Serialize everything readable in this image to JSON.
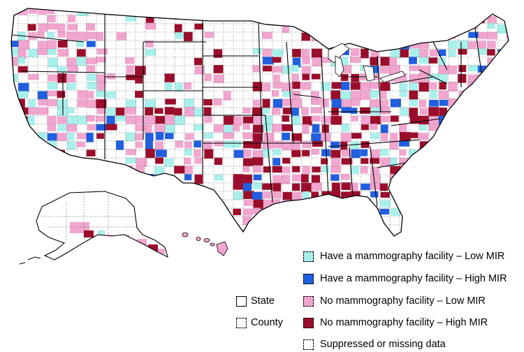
{
  "colors": {
    "have_low": "#a8f0ec",
    "have_high": "#1f5fe0",
    "no_low": "#f2a6cf",
    "no_high": "#9b0d2b",
    "state_border": "#000000",
    "county_border": "#555555",
    "background": "#ffffff"
  },
  "legend": {
    "categories": [
      {
        "key": "have_low",
        "label": "Have a mammography  facility – Low MIR",
        "swatch_style": "dashed"
      },
      {
        "key": "have_high",
        "label": "Have a mammography  facility – High MIR",
        "swatch_style": "dashed"
      },
      {
        "key": "no_low",
        "label": "No mammography facility – Low MIR",
        "swatch_style": "dashed"
      },
      {
        "key": "no_high",
        "label": "No mammography facility – High MIR",
        "swatch_style": "dashed"
      },
      {
        "key": "missing",
        "label": "Suppressed or missing data",
        "swatch_style": "dashed"
      }
    ],
    "boundaries": [
      {
        "key": "state",
        "label": "State",
        "swatch_style": "solid"
      },
      {
        "key": "county",
        "label": "County",
        "swatch_style": "dashed"
      }
    ]
  },
  "regions": [
    "contiguous-us",
    "alaska",
    "hawaii"
  ]
}
